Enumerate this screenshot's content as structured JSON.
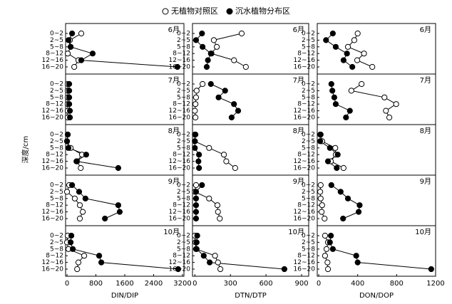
{
  "legend": [
    {
      "name": "无植物对照区",
      "fill": "#ffffff"
    },
    {
      "name": "沉水植物分布区",
      "fill": "#000000"
    }
  ],
  "ylabel": "深度/cm",
  "chart_data": [
    {
      "type": "line",
      "title": "6月",
      "categories": [
        "0~2",
        "2~5",
        "5~8",
        "8~12",
        "12~16",
        "16~20"
      ],
      "xlim": [
        -40,
        3240
      ],
      "series": [
        {
          "values": [
            395,
            80,
            100,
            20,
            315,
            200
          ]
        },
        {
          "values": [
            140,
            40,
            100,
            710,
            395,
            3060
          ]
        }
      ]
    },
    {
      "type": "line",
      "title": "6月",
      "categories": [
        "0~2",
        "2~5",
        "5~8",
        "8~12",
        "12~16",
        "16~20"
      ],
      "xlim": [
        -20,
        960
      ],
      "series": [
        {
          "values": [
            395,
            160,
            185,
            140,
            330,
            430
          ]
        },
        {
          "values": [
            60,
            10,
            65,
            135,
            110,
            100
          ]
        }
      ]
    },
    {
      "type": "line",
      "title": "6月",
      "categories": [
        "0~2",
        "2~5",
        "5~8",
        "8~12",
        "12~16",
        "16~20"
      ],
      "xlim": [
        -15,
        1200
      ],
      "series": [
        {
          "values": [
            400,
            365,
            300,
            465,
            395,
            550
          ]
        },
        {
          "values": [
            145,
            75,
            175,
            290,
            255,
            345
          ]
        }
      ]
    },
    {
      "type": "line",
      "title": "7月",
      "categories": [
        "0~2",
        "2~5",
        "5~8",
        "8~12",
        "12~16",
        "16~20"
      ],
      "xlim": [
        -40,
        3240
      ],
      "series": [
        {
          "values": [
            20,
            20,
            20,
            20,
            20,
            20
          ]
        },
        {
          "values": [
            60,
            60,
            60,
            60,
            80,
            80
          ]
        }
      ]
    },
    {
      "type": "line",
      "title": "7月",
      "categories": [
        "0~2",
        "2~5",
        "5~8",
        "8~12",
        "12~16",
        "16~20"
      ],
      "xlim": [
        -20,
        960
      ],
      "series": [
        {
          "values": [
            65,
            15,
            10,
            5,
            0,
            5
          ]
        },
        {
          "values": [
            135,
            255,
            200,
            330,
            365,
            310
          ]
        }
      ]
    },
    {
      "type": "line",
      "title": "7月",
      "categories": [
        "0~2",
        "2~5",
        "5~8",
        "8~12",
        "12~16",
        "16~20"
      ],
      "xlim": [
        -15,
        1200
      ],
      "series": [
        {
          "values": [
            440,
            335,
            675,
            795,
            690,
            725
          ]
        },
        {
          "values": [
            130,
            140,
            160,
            175,
            320,
            280
          ]
        }
      ]
    },
    {
      "type": "line",
      "title": "8月",
      "categories": [
        "0~2",
        "2~5",
        "5~8",
        "8~12",
        "12~16",
        "16~20"
      ],
      "xlim": [
        -40,
        3240
      ],
      "series": [
        {
          "values": [
            20,
            0,
            100,
            415,
            280,
            380
          ]
        },
        {
          "values": [
            20,
            0,
            40,
            530,
            260,
            1420
          ]
        }
      ]
    },
    {
      "type": "line",
      "title": "8月",
      "categories": [
        "0~2",
        "2~5",
        "5~8",
        "8~12",
        "12~16",
        "16~20"
      ],
      "xlim": [
        -20,
        960
      ],
      "series": [
        {
          "values": [
            0,
            0,
            120,
            245,
            265,
            340
          ]
        },
        {
          "values": [
            5,
            0,
            0,
            35,
            30,
            35
          ]
        }
      ]
    },
    {
      "type": "line",
      "title": "8月",
      "categories": [
        "0~2",
        "2~5",
        "5~8",
        "8~12",
        "12~16",
        "16~20"
      ],
      "xlim": [
        -15,
        1200
      ],
      "series": [
        {
          "values": [
            20,
            35,
            170,
            175,
            125,
            255
          ]
        },
        {
          "values": [
            15,
            15,
            115,
            195,
            95,
            185
          ]
        }
      ]
    },
    {
      "type": "line",
      "title": "9月",
      "categories": [
        "0~2",
        "2~5",
        "5~8",
        "8~12",
        "12~16",
        "16~20"
      ],
      "xlim": [
        -40,
        3240
      ],
      "series": [
        {
          "values": [
            60,
            0,
            215,
            355,
            435,
            355
          ]
        },
        {
          "values": [
            140,
            335,
            510,
            1420,
            1460,
            1050
          ]
        }
      ]
    },
    {
      "type": "line",
      "title": "9月",
      "categories": [
        "0~2",
        "2~5",
        "5~8",
        "8~12",
        "12~16",
        "16~20"
      ],
      "xlim": [
        -20,
        960
      ],
      "series": [
        {
          "values": [
            10,
            0,
            120,
            190,
            195,
            210
          ]
        },
        {
          "values": [
            60,
            10,
            10,
            10,
            10,
            10
          ]
        }
      ]
    },
    {
      "type": "line",
      "title": "9月",
      "categories": [
        "0~2",
        "2~5",
        "5~8",
        "8~12",
        "12~16",
        "16~20"
      ],
      "xlim": [
        -15,
        1200
      ],
      "series": [
        {
          "values": [
            20,
            15,
            20,
            35,
            30,
            60
          ]
        },
        {
          "values": [
            130,
            225,
            300,
            420,
            410,
            250
          ]
        }
      ]
    },
    {
      "type": "line",
      "title": "10月",
      "categories": [
        "0~2",
        "2~5",
        "5~8",
        "8~12",
        "12~16",
        "16~20"
      ],
      "xlim": [
        -40,
        3240
      ],
      "xticks": [
        0,
        800,
        1600,
        2400,
        3200
      ],
      "xlabel": "DIN/DIP",
      "series": [
        {
          "values": [
            20,
            0,
            40,
            475,
            315,
            280
          ]
        },
        {
          "values": [
            120,
            100,
            160,
            890,
            950,
            3080
          ]
        }
      ]
    },
    {
      "type": "line",
      "title": "10月",
      "categories": [
        "0~2",
        "2~5",
        "5~8",
        "8~12",
        "12~16",
        "16~20"
      ],
      "xlim": [
        -20,
        960
      ],
      "xticks": [
        0,
        300,
        600,
        900
      ],
      "xlabel": "DTN/DTP",
      "series": [
        {
          "values": [
            0,
            5,
            10,
            170,
            195,
            215
          ]
        },
        {
          "values": [
            20,
            15,
            15,
            75,
            125,
            755
          ]
        }
      ]
    },
    {
      "type": "line",
      "title": "10月",
      "categories": [
        "0~2",
        "2~5",
        "5~8",
        "8~12",
        "12~16",
        "16~20"
      ],
      "xlim": [
        -15,
        1200
      ],
      "xticks": [
        0,
        400,
        800,
        1200
      ],
      "xlabel": "DON/DOP",
      "series": [
        {
          "values": [
            65,
            95,
            80,
            65,
            90,
            95
          ]
        },
        {
          "values": [
            125,
            115,
            145,
            385,
            400,
            1155
          ]
        }
      ]
    }
  ]
}
